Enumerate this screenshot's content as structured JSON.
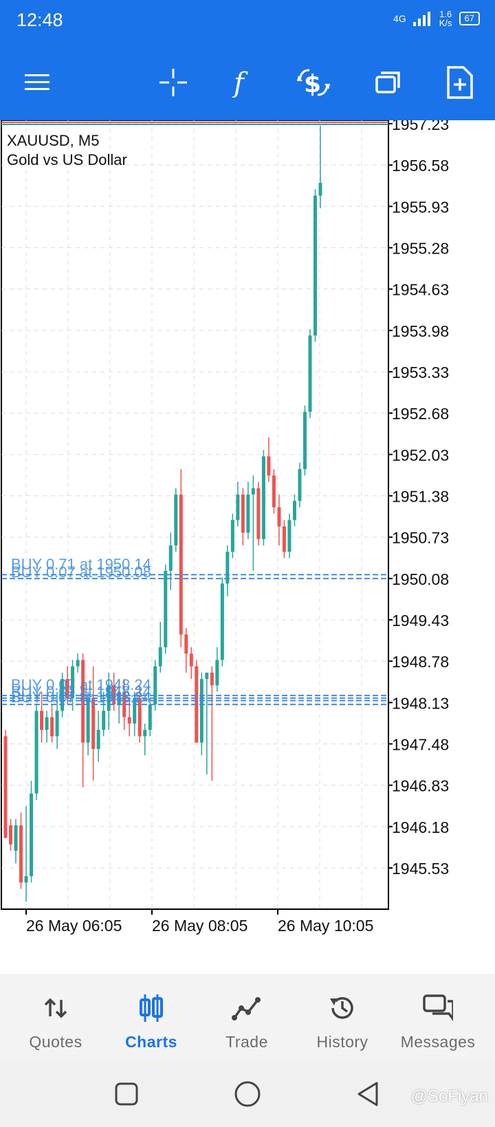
{
  "status_bar": {
    "time": "12:48",
    "network": "4G",
    "speed_value": "1.6",
    "speed_unit": "K/s",
    "battery": "67"
  },
  "toolbar": {
    "icons": [
      "menu-icon",
      "crosshair-icon",
      "indicators-icon",
      "trade-icon",
      "windows-icon",
      "new-order-icon"
    ]
  },
  "chart": {
    "symbol": "XAUUSD, M5",
    "description": "Gold vs US Dollar",
    "price_axis_labels": [
      "1957.23",
      "1956.58",
      "1955.93",
      "1955.28",
      "1954.63",
      "1953.98",
      "1953.33",
      "1952.68",
      "1952.03",
      "1951.38",
      "1950.73",
      "1950.08",
      "1949.43",
      "1948.78",
      "1948.13",
      "1947.48",
      "1946.83",
      "1946.18",
      "1945.53"
    ],
    "time_axis_labels": [
      "26 May 06:05",
      "26 May 08:05",
      "26 May 10:05"
    ],
    "order_labels": [
      "BUY 0.71 at 1950.14",
      "BUY 0.07 at 1950.08",
      "BUY 0.07 at 1948.24"
    ],
    "colors": {
      "bull": "#26a69a",
      "bear": "#ef5350",
      "order_line": "#3d8be0",
      "accent": "#1a73e8"
    }
  },
  "chart_data": {
    "type": "candlestick",
    "ylim": [
      1945.2,
      1957.4
    ],
    "candles": [
      {
        "o": 1947.6,
        "h": 1947.7,
        "l": 1946.0,
        "c": 1946.0
      },
      {
        "o": 1946.2,
        "h": 1946.3,
        "l": 1945.8,
        "c": 1945.9
      },
      {
        "o": 1945.8,
        "h": 1946.3,
        "l": 1945.6,
        "c": 1946.2
      },
      {
        "o": 1946.2,
        "h": 1946.4,
        "l": 1945.2,
        "c": 1945.3
      },
      {
        "o": 1945.3,
        "h": 1946.5,
        "l": 1945.0,
        "c": 1945.4
      },
      {
        "o": 1945.4,
        "h": 1946.9,
        "l": 1945.3,
        "c": 1946.7
      },
      {
        "o": 1946.7,
        "h": 1948.1,
        "l": 1946.6,
        "c": 1948.0
      },
      {
        "o": 1948.0,
        "h": 1948.3,
        "l": 1947.5,
        "c": 1947.7
      },
      {
        "o": 1947.7,
        "h": 1948.0,
        "l": 1947.5,
        "c": 1947.9
      },
      {
        "o": 1947.9,
        "h": 1948.1,
        "l": 1947.5,
        "c": 1947.6
      },
      {
        "o": 1947.6,
        "h": 1948.3,
        "l": 1947.4,
        "c": 1948.0
      },
      {
        "o": 1948.0,
        "h": 1948.6,
        "l": 1947.9,
        "c": 1948.5
      },
      {
        "o": 1948.5,
        "h": 1948.7,
        "l": 1948.1,
        "c": 1948.2
      },
      {
        "o": 1948.2,
        "h": 1948.8,
        "l": 1948.0,
        "c": 1948.7
      },
      {
        "o": 1948.7,
        "h": 1948.9,
        "l": 1948.6,
        "c": 1948.8
      },
      {
        "o": 1948.8,
        "h": 1948.9,
        "l": 1946.8,
        "c": 1947.5
      },
      {
        "o": 1947.5,
        "h": 1948.3,
        "l": 1947.3,
        "c": 1948.2
      },
      {
        "o": 1948.2,
        "h": 1948.7,
        "l": 1946.9,
        "c": 1947.4
      },
      {
        "o": 1947.4,
        "h": 1948.0,
        "l": 1947.2,
        "c": 1947.7
      },
      {
        "o": 1947.7,
        "h": 1948.3,
        "l": 1947.6,
        "c": 1948.0
      },
      {
        "o": 1948.0,
        "h": 1948.6,
        "l": 1947.7,
        "c": 1948.4
      },
      {
        "o": 1948.4,
        "h": 1948.6,
        "l": 1948.0,
        "c": 1948.1
      },
      {
        "o": 1948.1,
        "h": 1948.5,
        "l": 1947.8,
        "c": 1948.3
      },
      {
        "o": 1948.3,
        "h": 1948.5,
        "l": 1947.7,
        "c": 1947.9
      },
      {
        "o": 1947.9,
        "h": 1948.2,
        "l": 1947.6,
        "c": 1947.8
      },
      {
        "o": 1947.8,
        "h": 1948.3,
        "l": 1947.6,
        "c": 1948.2
      },
      {
        "o": 1948.2,
        "h": 1948.4,
        "l": 1947.5,
        "c": 1947.6
      },
      {
        "o": 1947.6,
        "h": 1947.8,
        "l": 1947.3,
        "c": 1947.7
      },
      {
        "o": 1947.7,
        "h": 1948.2,
        "l": 1947.6,
        "c": 1948.1
      },
      {
        "o": 1948.1,
        "h": 1948.8,
        "l": 1948.0,
        "c": 1948.7
      },
      {
        "o": 1948.7,
        "h": 1949.4,
        "l": 1948.6,
        "c": 1949.0
      },
      {
        "o": 1949.0,
        "h": 1950.3,
        "l": 1948.9,
        "c": 1950.2
      },
      {
        "o": 1950.2,
        "h": 1950.8,
        "l": 1949.9,
        "c": 1950.6
      },
      {
        "o": 1950.6,
        "h": 1951.5,
        "l": 1950.5,
        "c": 1951.4
      },
      {
        "o": 1951.4,
        "h": 1951.8,
        "l": 1949.0,
        "c": 1949.2
      },
      {
        "o": 1949.2,
        "h": 1949.3,
        "l": 1948.6,
        "c": 1948.9
      },
      {
        "o": 1948.9,
        "h": 1949.0,
        "l": 1948.5,
        "c": 1948.7
      },
      {
        "o": 1948.7,
        "h": 1948.8,
        "l": 1947.5,
        "c": 1947.5
      },
      {
        "o": 1947.5,
        "h": 1948.6,
        "l": 1947.3,
        "c": 1948.5
      },
      {
        "o": 1948.5,
        "h": 1948.6,
        "l": 1947.0,
        "c": 1948.6
      },
      {
        "o": 1948.6,
        "h": 1948.7,
        "l": 1946.9,
        "c": 1948.4
      },
      {
        "o": 1948.4,
        "h": 1949.0,
        "l": 1948.3,
        "c": 1948.8
      },
      {
        "o": 1948.8,
        "h": 1950.1,
        "l": 1948.7,
        "c": 1950.0
      },
      {
        "o": 1950.0,
        "h": 1950.6,
        "l": 1949.8,
        "c": 1950.5
      },
      {
        "o": 1950.5,
        "h": 1951.1,
        "l": 1950.4,
        "c": 1951.0
      },
      {
        "o": 1951.0,
        "h": 1951.6,
        "l": 1950.9,
        "c": 1951.4
      },
      {
        "o": 1951.4,
        "h": 1951.5,
        "l": 1950.6,
        "c": 1950.8
      },
      {
        "o": 1950.8,
        "h": 1951.6,
        "l": 1950.7,
        "c": 1951.4
      },
      {
        "o": 1951.4,
        "h": 1951.7,
        "l": 1950.2,
        "c": 1951.5
      },
      {
        "o": 1951.5,
        "h": 1951.6,
        "l": 1950.6,
        "c": 1950.7
      },
      {
        "o": 1950.7,
        "h": 1952.1,
        "l": 1950.6,
        "c": 1952.0
      },
      {
        "o": 1952.0,
        "h": 1952.3,
        "l": 1951.6,
        "c": 1951.7
      },
      {
        "o": 1951.7,
        "h": 1951.8,
        "l": 1951.1,
        "c": 1951.2
      },
      {
        "o": 1951.2,
        "h": 1951.4,
        "l": 1950.6,
        "c": 1950.9
      },
      {
        "o": 1950.9,
        "h": 1951.0,
        "l": 1950.4,
        "c": 1950.5
      },
      {
        "o": 1950.5,
        "h": 1951.1,
        "l": 1950.4,
        "c": 1951.0
      },
      {
        "o": 1951.0,
        "h": 1951.4,
        "l": 1950.9,
        "c": 1951.3
      },
      {
        "o": 1951.3,
        "h": 1951.9,
        "l": 1951.2,
        "c": 1951.8
      },
      {
        "o": 1951.8,
        "h": 1952.8,
        "l": 1951.7,
        "c": 1952.7
      },
      {
        "o": 1952.7,
        "h": 1954.0,
        "l": 1952.6,
        "c": 1953.9
      },
      {
        "o": 1953.9,
        "h": 1956.2,
        "l": 1953.8,
        "c": 1956.1
      },
      {
        "o": 1956.1,
        "h": 1957.2,
        "l": 1955.9,
        "c": 1956.3
      }
    ],
    "order_levels": [
      1950.14,
      1950.08,
      1948.24,
      1948.2,
      1948.16,
      1948.1
    ],
    "grid": true
  }
}
